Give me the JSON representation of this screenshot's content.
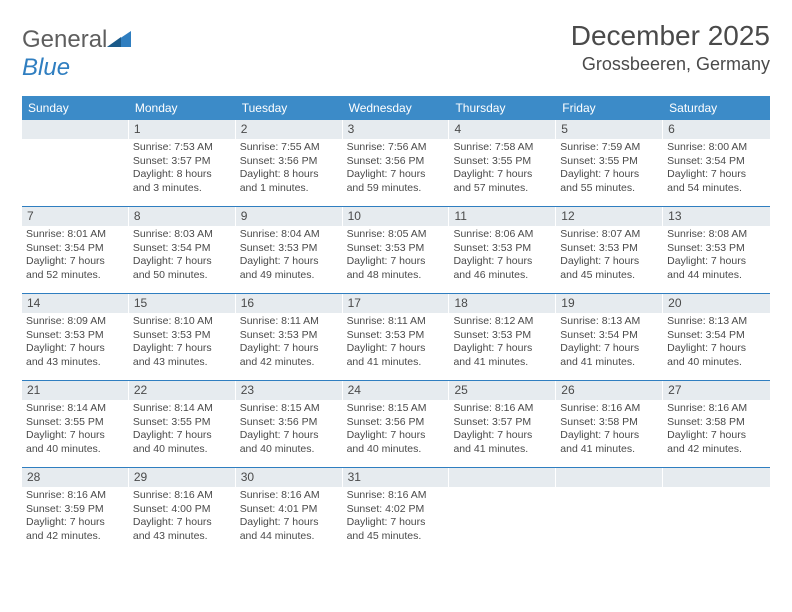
{
  "logo": {
    "text1": "General",
    "text2": "Blue"
  },
  "title": "December 2025",
  "location": "Grossbeeren, Germany",
  "colors": {
    "header_bg": "#3c8bc8",
    "daynum_bg": "#e6ebef",
    "rule": "#2f7ec0",
    "text": "#4a4a4a"
  },
  "days_of_week": [
    "Sunday",
    "Monday",
    "Tuesday",
    "Wednesday",
    "Thursday",
    "Friday",
    "Saturday"
  ],
  "weeks": [
    [
      {
        "n": "",
        "empty": true
      },
      {
        "n": "1",
        "sunrise": "Sunrise: 7:53 AM",
        "sunset": "Sunset: 3:57 PM",
        "daylight": "Daylight: 8 hours and 3 minutes."
      },
      {
        "n": "2",
        "sunrise": "Sunrise: 7:55 AM",
        "sunset": "Sunset: 3:56 PM",
        "daylight": "Daylight: 8 hours and 1 minutes."
      },
      {
        "n": "3",
        "sunrise": "Sunrise: 7:56 AM",
        "sunset": "Sunset: 3:56 PM",
        "daylight": "Daylight: 7 hours and 59 minutes."
      },
      {
        "n": "4",
        "sunrise": "Sunrise: 7:58 AM",
        "sunset": "Sunset: 3:55 PM",
        "daylight": "Daylight: 7 hours and 57 minutes."
      },
      {
        "n": "5",
        "sunrise": "Sunrise: 7:59 AM",
        "sunset": "Sunset: 3:55 PM",
        "daylight": "Daylight: 7 hours and 55 minutes."
      },
      {
        "n": "6",
        "sunrise": "Sunrise: 8:00 AM",
        "sunset": "Sunset: 3:54 PM",
        "daylight": "Daylight: 7 hours and 54 minutes."
      }
    ],
    [
      {
        "n": "7",
        "sunrise": "Sunrise: 8:01 AM",
        "sunset": "Sunset: 3:54 PM",
        "daylight": "Daylight: 7 hours and 52 minutes."
      },
      {
        "n": "8",
        "sunrise": "Sunrise: 8:03 AM",
        "sunset": "Sunset: 3:54 PM",
        "daylight": "Daylight: 7 hours and 50 minutes."
      },
      {
        "n": "9",
        "sunrise": "Sunrise: 8:04 AM",
        "sunset": "Sunset: 3:53 PM",
        "daylight": "Daylight: 7 hours and 49 minutes."
      },
      {
        "n": "10",
        "sunrise": "Sunrise: 8:05 AM",
        "sunset": "Sunset: 3:53 PM",
        "daylight": "Daylight: 7 hours and 48 minutes."
      },
      {
        "n": "11",
        "sunrise": "Sunrise: 8:06 AM",
        "sunset": "Sunset: 3:53 PM",
        "daylight": "Daylight: 7 hours and 46 minutes."
      },
      {
        "n": "12",
        "sunrise": "Sunrise: 8:07 AM",
        "sunset": "Sunset: 3:53 PM",
        "daylight": "Daylight: 7 hours and 45 minutes."
      },
      {
        "n": "13",
        "sunrise": "Sunrise: 8:08 AM",
        "sunset": "Sunset: 3:53 PM",
        "daylight": "Daylight: 7 hours and 44 minutes."
      }
    ],
    [
      {
        "n": "14",
        "sunrise": "Sunrise: 8:09 AM",
        "sunset": "Sunset: 3:53 PM",
        "daylight": "Daylight: 7 hours and 43 minutes."
      },
      {
        "n": "15",
        "sunrise": "Sunrise: 8:10 AM",
        "sunset": "Sunset: 3:53 PM",
        "daylight": "Daylight: 7 hours and 43 minutes."
      },
      {
        "n": "16",
        "sunrise": "Sunrise: 8:11 AM",
        "sunset": "Sunset: 3:53 PM",
        "daylight": "Daylight: 7 hours and 42 minutes."
      },
      {
        "n": "17",
        "sunrise": "Sunrise: 8:11 AM",
        "sunset": "Sunset: 3:53 PM",
        "daylight": "Daylight: 7 hours and 41 minutes."
      },
      {
        "n": "18",
        "sunrise": "Sunrise: 8:12 AM",
        "sunset": "Sunset: 3:53 PM",
        "daylight": "Daylight: 7 hours and 41 minutes."
      },
      {
        "n": "19",
        "sunrise": "Sunrise: 8:13 AM",
        "sunset": "Sunset: 3:54 PM",
        "daylight": "Daylight: 7 hours and 41 minutes."
      },
      {
        "n": "20",
        "sunrise": "Sunrise: 8:13 AM",
        "sunset": "Sunset: 3:54 PM",
        "daylight": "Daylight: 7 hours and 40 minutes."
      }
    ],
    [
      {
        "n": "21",
        "sunrise": "Sunrise: 8:14 AM",
        "sunset": "Sunset: 3:55 PM",
        "daylight": "Daylight: 7 hours and 40 minutes."
      },
      {
        "n": "22",
        "sunrise": "Sunrise: 8:14 AM",
        "sunset": "Sunset: 3:55 PM",
        "daylight": "Daylight: 7 hours and 40 minutes."
      },
      {
        "n": "23",
        "sunrise": "Sunrise: 8:15 AM",
        "sunset": "Sunset: 3:56 PM",
        "daylight": "Daylight: 7 hours and 40 minutes."
      },
      {
        "n": "24",
        "sunrise": "Sunrise: 8:15 AM",
        "sunset": "Sunset: 3:56 PM",
        "daylight": "Daylight: 7 hours and 40 minutes."
      },
      {
        "n": "25",
        "sunrise": "Sunrise: 8:16 AM",
        "sunset": "Sunset: 3:57 PM",
        "daylight": "Daylight: 7 hours and 41 minutes."
      },
      {
        "n": "26",
        "sunrise": "Sunrise: 8:16 AM",
        "sunset": "Sunset: 3:58 PM",
        "daylight": "Daylight: 7 hours and 41 minutes."
      },
      {
        "n": "27",
        "sunrise": "Sunrise: 8:16 AM",
        "sunset": "Sunset: 3:58 PM",
        "daylight": "Daylight: 7 hours and 42 minutes."
      }
    ],
    [
      {
        "n": "28",
        "sunrise": "Sunrise: 8:16 AM",
        "sunset": "Sunset: 3:59 PM",
        "daylight": "Daylight: 7 hours and 42 minutes."
      },
      {
        "n": "29",
        "sunrise": "Sunrise: 8:16 AM",
        "sunset": "Sunset: 4:00 PM",
        "daylight": "Daylight: 7 hours and 43 minutes."
      },
      {
        "n": "30",
        "sunrise": "Sunrise: 8:16 AM",
        "sunset": "Sunset: 4:01 PM",
        "daylight": "Daylight: 7 hours and 44 minutes."
      },
      {
        "n": "31",
        "sunrise": "Sunrise: 8:16 AM",
        "sunset": "Sunset: 4:02 PM",
        "daylight": "Daylight: 7 hours and 45 minutes."
      },
      {
        "n": "",
        "empty": true
      },
      {
        "n": "",
        "empty": true
      },
      {
        "n": "",
        "empty": true
      }
    ]
  ]
}
